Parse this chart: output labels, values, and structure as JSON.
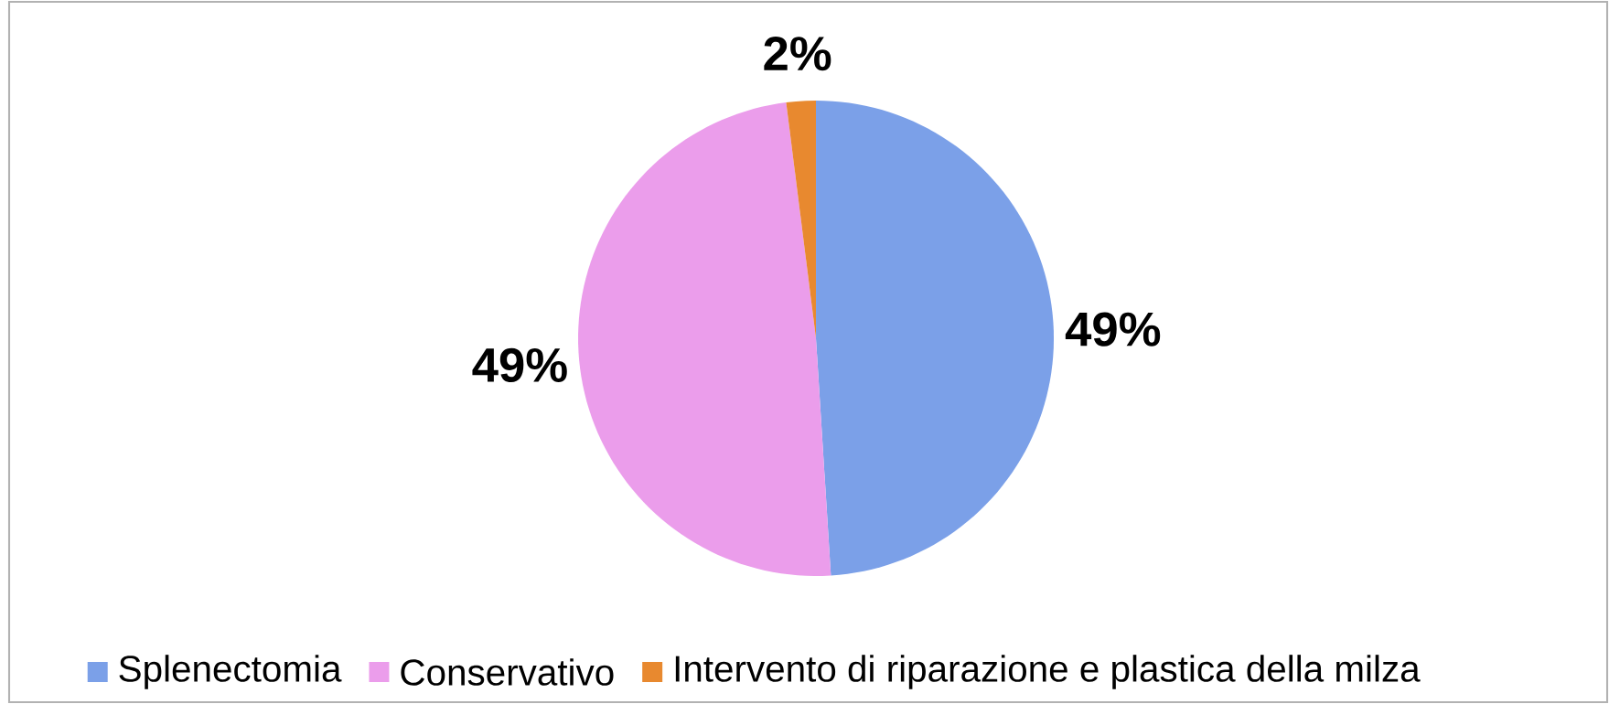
{
  "chart_data": {
    "type": "pie",
    "categories": [
      "Splenectomia",
      "Conservativo",
      "Intervento di riparazione e plastica della milza"
    ],
    "values": [
      49,
      49,
      2
    ],
    "value_labels": [
      "49%",
      "49%",
      "2%"
    ],
    "colors": [
      "#7ba0e8",
      "#eb9deb",
      "#e8892f"
    ],
    "legend": "bottom"
  }
}
